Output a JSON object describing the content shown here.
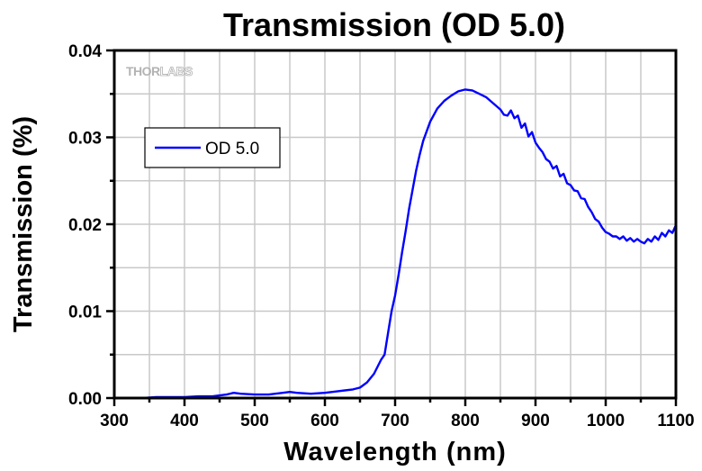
{
  "chart_data": {
    "type": "line",
    "title": "Transmission (OD 5.0)",
    "xlabel": "Wavelength (nm)",
    "ylabel": "Transmission (%)",
    "xlim": [
      300,
      1100
    ],
    "ylim": [
      0,
      0.04
    ],
    "xticks": [
      300,
      400,
      500,
      600,
      700,
      800,
      900,
      1000,
      1100
    ],
    "xtick_labels": [
      "300",
      "400",
      "500",
      "600",
      "700",
      "800",
      "900",
      "1000",
      "1100"
    ],
    "yticks": [
      0.0,
      0.01,
      0.02,
      0.03,
      0.04
    ],
    "ytick_labels": [
      "0.00",
      "0.01",
      "0.02",
      "0.03",
      "0.04"
    ],
    "x_minor_step": 50,
    "y_minor_step": 0.005,
    "grid": true,
    "legend": {
      "position": "upper-left",
      "entries": [
        "OD 5.0"
      ]
    },
    "watermark": {
      "bold": "THOR",
      "outline": "LABS"
    },
    "series": [
      {
        "name": "OD 5.0",
        "color": "#0000ff",
        "x": [
          300,
          320,
          340,
          360,
          380,
          400,
          420,
          440,
          460,
          470,
          480,
          500,
          520,
          540,
          550,
          560,
          580,
          600,
          620,
          640,
          650,
          660,
          670,
          680,
          685,
          690,
          695,
          700,
          705,
          710,
          715,
          720,
          725,
          730,
          735,
          740,
          750,
          760,
          770,
          780,
          790,
          800,
          810,
          820,
          830,
          840,
          850,
          855,
          860,
          865,
          870,
          875,
          880,
          885,
          890,
          895,
          900,
          905,
          910,
          915,
          920,
          925,
          930,
          935,
          940,
          945,
          950,
          955,
          960,
          965,
          970,
          975,
          980,
          985,
          990,
          995,
          1000,
          1005,
          1010,
          1015,
          1020,
          1025,
          1030,
          1035,
          1040,
          1045,
          1050,
          1055,
          1060,
          1065,
          1070,
          1075,
          1080,
          1085,
          1090,
          1095,
          1100
        ],
        "y": [
          0.0,
          0.0,
          0.0,
          0.0001,
          0.0001,
          0.0001,
          0.0002,
          0.0002,
          0.0004,
          0.0006,
          0.0005,
          0.0004,
          0.0004,
          0.0006,
          0.0007,
          0.0006,
          0.0005,
          0.0006,
          0.0008,
          0.001,
          0.0012,
          0.0018,
          0.0028,
          0.0044,
          0.005,
          0.0075,
          0.01,
          0.0118,
          0.0142,
          0.0168,
          0.0192,
          0.0218,
          0.024,
          0.0262,
          0.028,
          0.0296,
          0.0318,
          0.0333,
          0.0342,
          0.0348,
          0.0353,
          0.0355,
          0.0354,
          0.035,
          0.0346,
          0.0339,
          0.0332,
          0.0326,
          0.0325,
          0.0331,
          0.0322,
          0.0325,
          0.0311,
          0.0316,
          0.0301,
          0.0306,
          0.0294,
          0.0288,
          0.0283,
          0.0275,
          0.0272,
          0.0264,
          0.0267,
          0.0255,
          0.0258,
          0.0247,
          0.0245,
          0.0239,
          0.0238,
          0.023,
          0.0229,
          0.022,
          0.0214,
          0.0206,
          0.0203,
          0.0196,
          0.0191,
          0.0189,
          0.0186,
          0.0186,
          0.0183,
          0.0186,
          0.0181,
          0.0184,
          0.018,
          0.0183,
          0.018,
          0.0178,
          0.0183,
          0.018,
          0.0186,
          0.0182,
          0.019,
          0.0186,
          0.0193,
          0.019,
          0.0199
        ]
      }
    ]
  }
}
